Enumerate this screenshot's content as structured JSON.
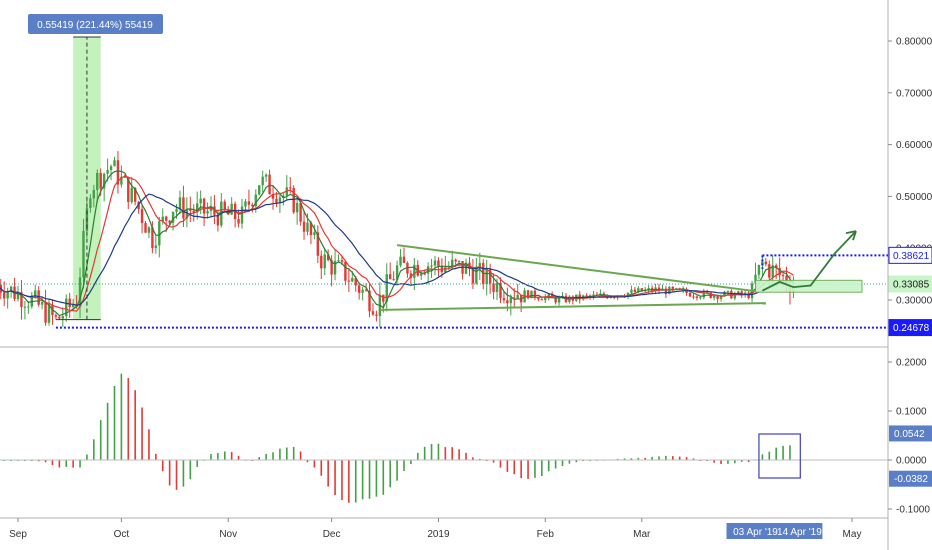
{
  "chart_data": [
    {
      "type": "candlestick",
      "panel": "price",
      "y_ticks": [
        "0.80000",
        "0.70000",
        "0.60000",
        "0.50000",
        "0.40000",
        "0.30000"
      ],
      "x_ticks": [
        "Sep",
        "Oct",
        "Nov",
        "Dec",
        "2019",
        "Feb",
        "Mar",
        "Apr",
        "May"
      ],
      "price_axis_flags": [
        {
          "label": "0.38621",
          "color": "#ffffff",
          "text_color": "#1a1aff",
          "border": "#1a1aff"
        },
        {
          "label": "0.33085",
          "color": "#c8f5c8",
          "text_color": "#1b1b1b",
          "border": "#c8f5c8"
        },
        {
          "label": "0.24678",
          "color": "#1a1aff",
          "text_color": "#ffffff",
          "border": "#1a1aff"
        }
      ],
      "measure_label": "0.55419 (221.44%) 55419",
      "date_range_label": [
        "03 Apr '19",
        "14 Apr '19"
      ],
      "close_approx": [
        {
          "x": "2018-08-26",
          "y": 0.33
        },
        {
          "x": "2018-09-05",
          "y": 0.3
        },
        {
          "x": "2018-09-12",
          "y": 0.26
        },
        {
          "x": "2018-09-18",
          "y": 0.3
        },
        {
          "x": "2018-09-22",
          "y": 0.52
        },
        {
          "x": "2018-09-28",
          "y": 0.56
        },
        {
          "x": "2018-10-05",
          "y": 0.49
        },
        {
          "x": "2018-10-10",
          "y": 0.42
        },
        {
          "x": "2018-10-16",
          "y": 0.48
        },
        {
          "x": "2018-10-25",
          "y": 0.47
        },
        {
          "x": "2018-11-05",
          "y": 0.46
        },
        {
          "x": "2018-11-10",
          "y": 0.53
        },
        {
          "x": "2018-11-20",
          "y": 0.49
        },
        {
          "x": "2018-11-28",
          "y": 0.38
        },
        {
          "x": "2018-12-05",
          "y": 0.35
        },
        {
          "x": "2018-12-14",
          "y": 0.29
        },
        {
          "x": "2018-12-20",
          "y": 0.36
        },
        {
          "x": "2018-12-28",
          "y": 0.37
        },
        {
          "x": "2019-01-10",
          "y": 0.36
        },
        {
          "x": "2019-01-20",
          "y": 0.32
        },
        {
          "x": "2019-02-05",
          "y": 0.3
        },
        {
          "x": "2019-02-20",
          "y": 0.31
        },
        {
          "x": "2019-03-05",
          "y": 0.32
        },
        {
          "x": "2019-03-20",
          "y": 0.31
        },
        {
          "x": "2019-04-01",
          "y": 0.31
        },
        {
          "x": "2019-04-05",
          "y": 0.37
        },
        {
          "x": "2019-04-14",
          "y": 0.33
        }
      ],
      "moving_averages": [
        {
          "color": "#2e7d32"
        },
        {
          "color": "#e53935"
        },
        {
          "color": "#1e3a8a"
        }
      ],
      "ylim": [
        0.22,
        0.86
      ],
      "grid": false
    },
    {
      "type": "bar",
      "panel": "oscillator",
      "y_ticks": [
        "0.2000",
        "0.1000",
        "0.0000",
        "-0.1000"
      ],
      "flags": [
        {
          "label": "0.0542",
          "color": "#5b7fc7"
        },
        {
          "label": "-0.0382",
          "color": "#5b7fc7"
        }
      ],
      "ylim": [
        -0.11,
        0.21
      ],
      "colors": {
        "up": "#43a047",
        "down": "#e53935"
      }
    }
  ]
}
